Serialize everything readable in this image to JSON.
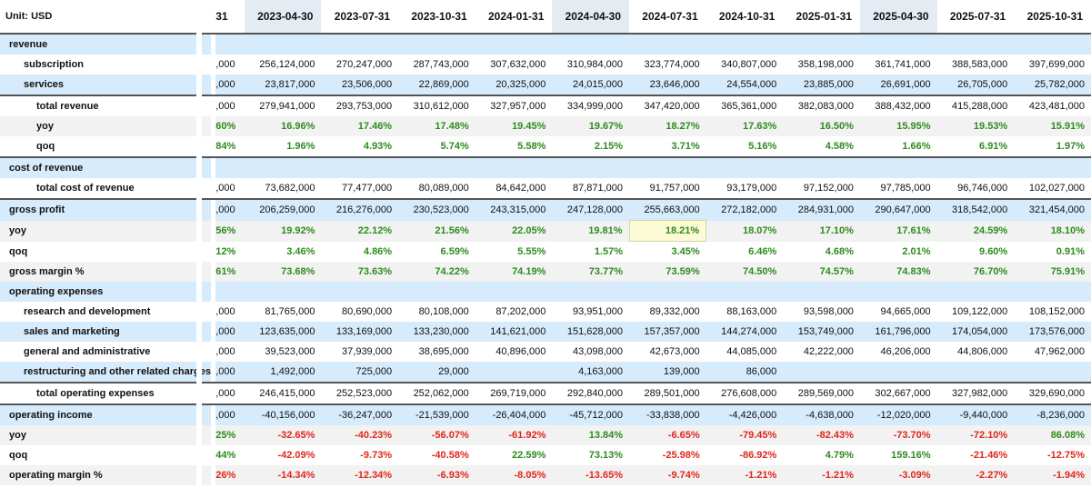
{
  "unit_label": "Unit: USD",
  "edge_header": "31",
  "dates": [
    "2023-04-30",
    "2023-07-31",
    "2023-10-31",
    "2024-01-31",
    "2024-04-30",
    "2024-07-31",
    "2024-10-31",
    "2025-01-31",
    "2025-04-30",
    "2025-07-31",
    "2025-10-31"
  ],
  "highlighted_date_columns": [
    0,
    4,
    8
  ],
  "colors": {
    "blue_row": "#d6ebfb",
    "grey_row": "#f2f2f2",
    "positive": "#2e8b1e",
    "negative": "#e0261c",
    "selected_cell": "#fdfbd6"
  },
  "selected_cell": {
    "row": 9,
    "column": 5
  },
  "rows": [
    {
      "label": "revenue",
      "indent": 0,
      "bg": "blue",
      "edge": "",
      "values": [
        "",
        "",
        "",
        "",
        "",
        "",
        "",
        "",
        "",
        "",
        ""
      ]
    },
    {
      "label": "subscription",
      "indent": 1,
      "bg": "white",
      "edge": ",000",
      "values": [
        "256,124,000",
        "270,247,000",
        "287,743,000",
        "307,632,000",
        "310,984,000",
        "323,774,000",
        "340,807,000",
        "358,198,000",
        "361,741,000",
        "388,583,000",
        "397,699,000"
      ]
    },
    {
      "label": "services",
      "indent": 1,
      "bg": "blue",
      "edge": ",000",
      "values": [
        "23,817,000",
        "23,506,000",
        "22,869,000",
        "20,325,000",
        "24,015,000",
        "23,646,000",
        "24,554,000",
        "23,885,000",
        "26,691,000",
        "26,705,000",
        "25,782,000"
      ]
    },
    {
      "label": "total revenue",
      "indent": 2,
      "bg": "white",
      "edge": ",000",
      "line": "top",
      "values": [
        "279,941,000",
        "293,753,000",
        "310,612,000",
        "327,957,000",
        "334,999,000",
        "347,420,000",
        "365,361,000",
        "382,083,000",
        "388,432,000",
        "415,288,000",
        "423,481,000"
      ]
    },
    {
      "label": "yoy",
      "indent": 2,
      "bg": "grey",
      "pct": true,
      "edge": "60%",
      "values": [
        "16.96%",
        "17.46%",
        "17.48%",
        "19.45%",
        "19.67%",
        "18.27%",
        "17.63%",
        "16.50%",
        "15.95%",
        "19.53%",
        "15.91%"
      ]
    },
    {
      "label": "qoq",
      "indent": 2,
      "bg": "white",
      "pct": true,
      "edge": "84%",
      "line": "bottom",
      "values": [
        "1.96%",
        "4.93%",
        "5.74%",
        "5.58%",
        "2.15%",
        "3.71%",
        "5.16%",
        "4.58%",
        "1.66%",
        "6.91%",
        "1.97%"
      ]
    },
    {
      "label": "cost of revenue",
      "indent": 0,
      "bg": "blue",
      "edge": "",
      "values": [
        "",
        "",
        "",
        "",
        "",
        "",
        "",
        "",
        "",
        "",
        ""
      ]
    },
    {
      "label": "total cost of revenue",
      "indent": 2,
      "bg": "white",
      "edge": ",000",
      "values": [
        "73,682,000",
        "77,477,000",
        "80,089,000",
        "84,642,000",
        "87,871,000",
        "91,757,000",
        "93,179,000",
        "97,152,000",
        "97,785,000",
        "96,746,000",
        "102,027,000"
      ]
    },
    {
      "label": "gross profit",
      "indent": 0,
      "bg": "blue",
      "edge": ",000",
      "line": "top",
      "values": [
        "206,259,000",
        "216,276,000",
        "230,523,000",
        "243,315,000",
        "247,128,000",
        "255,663,000",
        "272,182,000",
        "284,931,000",
        "290,647,000",
        "318,542,000",
        "321,454,000"
      ]
    },
    {
      "label": "yoy",
      "indent": 0,
      "bg": "grey",
      "pct": true,
      "edge": "56%",
      "values": [
        "19.92%",
        "22.12%",
        "21.56%",
        "22.05%",
        "19.81%",
        "18.21%",
        "18.07%",
        "17.10%",
        "17.61%",
        "24.59%",
        "18.10%"
      ]
    },
    {
      "label": "qoq",
      "indent": 0,
      "bg": "white",
      "pct": true,
      "edge": "12%",
      "values": [
        "3.46%",
        "4.86%",
        "6.59%",
        "5.55%",
        "1.57%",
        "3.45%",
        "6.46%",
        "4.68%",
        "2.01%",
        "9.60%",
        "0.91%"
      ]
    },
    {
      "label": "gross margin %",
      "indent": 0,
      "bg": "grey",
      "pct": true,
      "edge": "61%",
      "values": [
        "73.68%",
        "73.63%",
        "74.22%",
        "74.19%",
        "73.77%",
        "73.59%",
        "74.50%",
        "74.57%",
        "74.83%",
        "76.70%",
        "75.91%"
      ]
    },
    {
      "label": "operating expenses",
      "indent": 0,
      "bg": "blue",
      "edge": "",
      "values": [
        "",
        "",
        "",
        "",
        "",
        "",
        "",
        "",
        "",
        "",
        ""
      ]
    },
    {
      "label": "research and development",
      "indent": 1,
      "bg": "white",
      "edge": ",000",
      "values": [
        "81,765,000",
        "80,690,000",
        "80,108,000",
        "87,202,000",
        "93,951,000",
        "89,332,000",
        "88,163,000",
        "93,598,000",
        "94,665,000",
        "109,122,000",
        "108,152,000"
      ]
    },
    {
      "label": "sales and marketing",
      "indent": 1,
      "bg": "blue",
      "edge": ",000",
      "values": [
        "123,635,000",
        "133,169,000",
        "133,230,000",
        "141,621,000",
        "151,628,000",
        "157,357,000",
        "144,274,000",
        "153,749,000",
        "161,796,000",
        "174,054,000",
        "173,576,000"
      ]
    },
    {
      "label": "general and administrative",
      "indent": 1,
      "bg": "white",
      "edge": ",000",
      "values": [
        "39,523,000",
        "37,939,000",
        "38,695,000",
        "40,896,000",
        "43,098,000",
        "42,673,000",
        "44,085,000",
        "42,222,000",
        "46,206,000",
        "44,806,000",
        "47,962,000"
      ]
    },
    {
      "label": "restructuring and other related charges",
      "indent": 1,
      "bg": "blue",
      "edge": ",000",
      "values": [
        "1,492,000",
        "725,000",
        "29,000",
        "",
        "4,163,000",
        "139,000",
        "86,000",
        "",
        "",
        "",
        ""
      ]
    },
    {
      "label": "total operating expenses",
      "indent": 2,
      "bg": "white",
      "edge": ",000",
      "line": "top",
      "values": [
        "246,415,000",
        "252,523,000",
        "252,062,000",
        "269,719,000",
        "292,840,000",
        "289,501,000",
        "276,608,000",
        "289,569,000",
        "302,667,000",
        "327,982,000",
        "329,690,000"
      ]
    },
    {
      "label": "operating income",
      "indent": 0,
      "bg": "blue",
      "edge": ",000",
      "line": "top",
      "values": [
        "-40,156,000",
        "-36,247,000",
        "-21,539,000",
        "-26,404,000",
        "-45,712,000",
        "-33,838,000",
        "-4,426,000",
        "-4,638,000",
        "-12,020,000",
        "-9,440,000",
        "-8,236,000"
      ]
    },
    {
      "label": "yoy",
      "indent": 0,
      "bg": "grey",
      "pct": true,
      "edge": "25%",
      "values": [
        "-32.65%",
        "-40.23%",
        "-56.07%",
        "-61.92%",
        "13.84%",
        "-6.65%",
        "-79.45%",
        "-82.43%",
        "-73.70%",
        "-72.10%",
        "86.08%"
      ]
    },
    {
      "label": "qoq",
      "indent": 0,
      "bg": "white",
      "pct": true,
      "edge": "44%",
      "values": [
        "-42.09%",
        "-9.73%",
        "-40.58%",
        "22.59%",
        "73.13%",
        "-25.98%",
        "-86.92%",
        "4.79%",
        "159.16%",
        "-21.46%",
        "-12.75%"
      ]
    },
    {
      "label": "operating margin %",
      "indent": 0,
      "bg": "grey",
      "pct": true,
      "edge": "26%",
      "edge_neg": true,
      "values": [
        "-14.34%",
        "-12.34%",
        "-6.93%",
        "-8.05%",
        "-13.65%",
        "-9.74%",
        "-1.21%",
        "-1.21%",
        "-3.09%",
        "-2.27%",
        "-1.94%"
      ]
    }
  ]
}
